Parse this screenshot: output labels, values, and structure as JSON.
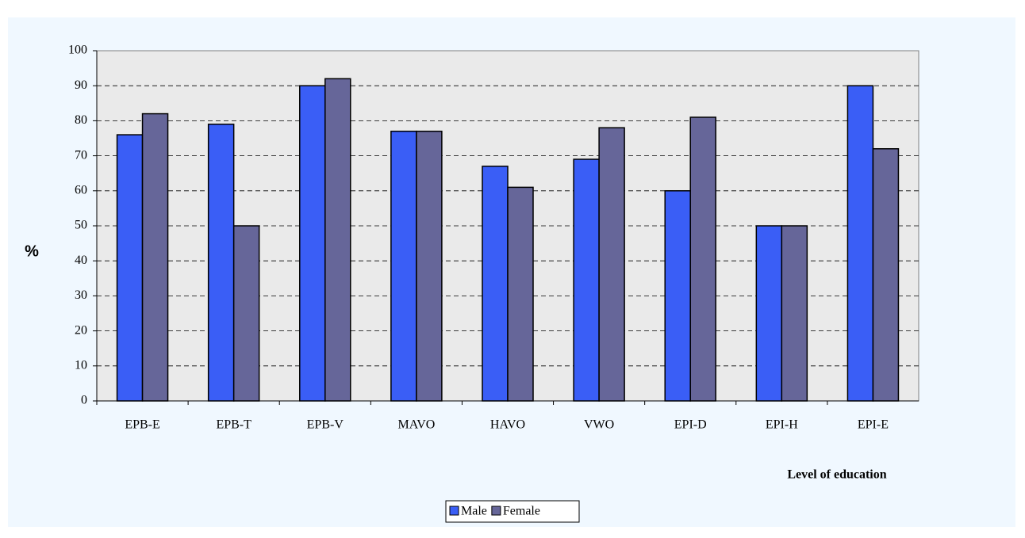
{
  "chart_data": {
    "type": "bar",
    "categories": [
      "EPB-E",
      "EPB-T",
      "EPB-V",
      "MAVO",
      "HAVO",
      "VWO",
      "EPI-D",
      "EPI-H",
      "EPI-E"
    ],
    "series": [
      {
        "name": "Male",
        "color": "#3a5ef6",
        "values": [
          76,
          79,
          90,
          77,
          67,
          69,
          60,
          50,
          90
        ]
      },
      {
        "name": "Female",
        "color": "#666699",
        "values": [
          82,
          50,
          92,
          77,
          61,
          78,
          81,
          50,
          72
        ]
      }
    ],
    "y_label": "%",
    "x_label": "Level of education",
    "ylim": [
      0,
      100
    ],
    "yticks": [
      0,
      10,
      20,
      30,
      40,
      50,
      60,
      70,
      80,
      90,
      100
    ],
    "grid": true,
    "legend": "bottom"
  }
}
